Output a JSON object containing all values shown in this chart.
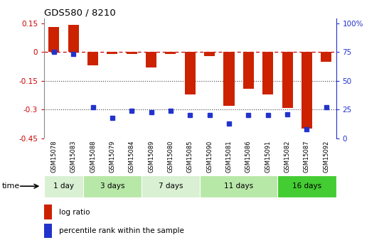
{
  "title": "GDS580 / 8210",
  "samples": [
    "GSM15078",
    "GSM15083",
    "GSM15088",
    "GSM15079",
    "GSM15084",
    "GSM15089",
    "GSM15080",
    "GSM15085",
    "GSM15090",
    "GSM15081",
    "GSM15086",
    "GSM15091",
    "GSM15082",
    "GSM15087",
    "GSM15092"
  ],
  "log_ratio": [
    0.13,
    0.14,
    -0.07,
    -0.01,
    -0.01,
    -0.08,
    -0.01,
    -0.22,
    -0.02,
    -0.28,
    -0.19,
    -0.22,
    -0.29,
    -0.4,
    -0.05
  ],
  "percentile": [
    75,
    73,
    27,
    18,
    24,
    23,
    24,
    20,
    20,
    13,
    20,
    20,
    21,
    8,
    27
  ],
  "groups": [
    {
      "label": "1 day",
      "count": 2,
      "color": "#d9f0d3"
    },
    {
      "label": "3 days",
      "count": 3,
      "color": "#b8e8a8"
    },
    {
      "label": "7 days",
      "count": 3,
      "color": "#d9f0d3"
    },
    {
      "label": "11 days",
      "count": 4,
      "color": "#b8e8a8"
    },
    {
      "label": "16 days",
      "count": 3,
      "color": "#44cc33"
    }
  ],
  "bar_color": "#cc2200",
  "dot_color": "#2233cc",
  "hline_color": "#cc0000",
  "dotted_color": "#444444",
  "ylim_min": -0.45,
  "ylim_max": 0.175,
  "yticks_left": [
    0.15,
    0.0,
    -0.15,
    -0.3,
    -0.45
  ],
  "ytick_labels_left": [
    "0.15",
    "0",
    "-0.15",
    "-0.3",
    "-0.45"
  ],
  "yticks_right_pct": [
    100,
    75,
    50,
    25,
    0
  ],
  "ytick_labels_right": [
    "100%",
    "75",
    "50",
    "25",
    "0"
  ],
  "bar_width": 0.55,
  "bg_color": "#ffffff",
  "sample_bg": "#cccccc",
  "sample_border": "#ffffff",
  "legend_log": "log ratio",
  "legend_pct": "percentile rank within the sample",
  "time_label": "time"
}
